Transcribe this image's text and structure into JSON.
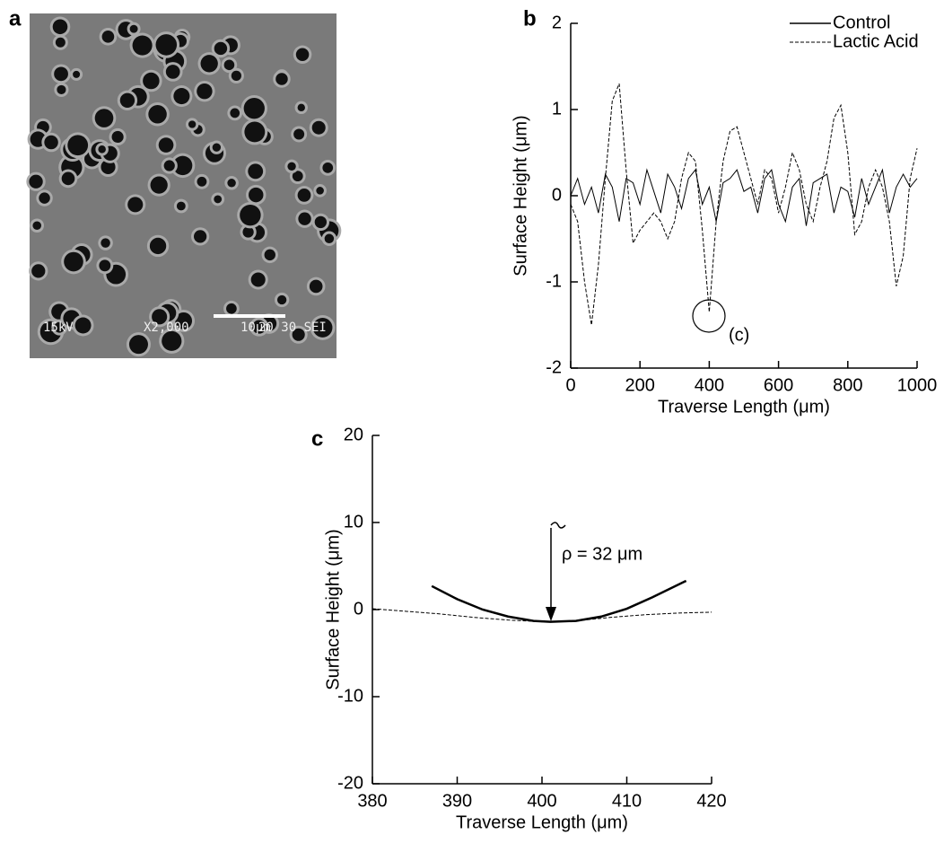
{
  "image_panel": {
    "panel_label": "a",
    "overlay": [
      "15kV",
      "X2,000",
      "10μm",
      "20 30 SEI"
    ]
  },
  "chart_data": [
    {
      "type": "line",
      "panel_label": "b",
      "x_label": "Traverse Length (μm)",
      "y_label": "Surface Height (μm)",
      "xlim": [
        0,
        1000
      ],
      "xticks": [
        0,
        200,
        400,
        600,
        800,
        1000
      ],
      "ylim": [
        -2,
        2
      ],
      "yticks": [
        -2,
        -1,
        0,
        1,
        2
      ],
      "legend": "upper right",
      "annotation": "(c)",
      "x": [
        0,
        20,
        40,
        60,
        80,
        100,
        120,
        140,
        160,
        180,
        200,
        220,
        240,
        260,
        280,
        300,
        320,
        340,
        360,
        380,
        400,
        420,
        440,
        460,
        480,
        500,
        520,
        540,
        560,
        580,
        600,
        620,
        640,
        660,
        680,
        700,
        720,
        740,
        760,
        780,
        800,
        820,
        840,
        860,
        880,
        900,
        920,
        940,
        960,
        980,
        1000
      ],
      "series": [
        {
          "name": "Control",
          "color": "#000000",
          "style": "solid",
          "values": [
            0,
            0.2,
            -0.1,
            0.1,
            -0.2,
            0.25,
            0.1,
            -0.3,
            0.2,
            0.15,
            -0.1,
            0.3,
            0.05,
            -0.2,
            0.25,
            0.1,
            -0.15,
            0.2,
            0.3,
            -0.1,
            0.1,
            -0.3,
            0.15,
            0.2,
            0.3,
            0.05,
            0.1,
            -0.2,
            0.2,
            0.3,
            -0.1,
            -0.3,
            0.1,
            0.2,
            -0.35,
            0.15,
            0.2,
            0.25,
            -0.2,
            0.1,
            0.05,
            -0.25,
            0.2,
            -0.1,
            0.1,
            0.3,
            -0.2,
            0.1,
            0.25,
            0.1,
            0.2
          ]
        },
        {
          "name": "Lactic Acid",
          "color": "#000000",
          "style": "dashed",
          "values": [
            -0.1,
            -0.3,
            -1.0,
            -1.5,
            -0.8,
            0.2,
            1.1,
            1.3,
            0.3,
            -0.55,
            -0.4,
            -0.3,
            -0.2,
            -0.3,
            -0.5,
            -0.3,
            0.2,
            0.5,
            0.4,
            -0.4,
            -1.35,
            -0.3,
            0.4,
            0.75,
            0.8,
            0.5,
            0.2,
            -0.1,
            0.3,
            0.2,
            -0.2,
            0.1,
            0.5,
            0.3,
            -0.1,
            -0.3,
            0.1,
            0.4,
            0.9,
            1.05,
            0.5,
            -0.45,
            -0.3,
            0.1,
            0.3,
            0.1,
            -0.3,
            -1.05,
            -0.7,
            0.2,
            0.55
          ]
        }
      ]
    },
    {
      "type": "line",
      "panel_label": "c",
      "x_label": "Traverse Length (μm)",
      "y_label": "Surface Height (μm)",
      "xlim": [
        380,
        420
      ],
      "xticks": [
        380,
        390,
        400,
        410,
        420
      ],
      "ylim": [
        -20,
        20
      ],
      "yticks": [
        -20,
        -10,
        0,
        10,
        20
      ],
      "annotation": "ρ = 32 μm",
      "series": [
        {
          "color": "#000000",
          "style": "dashed",
          "x": [
            380,
            384,
            388,
            392,
            396,
            400,
            402,
            404,
            408,
            412,
            416,
            420
          ],
          "values": [
            0.1,
            -0.2,
            -0.5,
            -0.9,
            -1.2,
            -1.4,
            -1.4,
            -1.3,
            -0.9,
            -0.6,
            -0.4,
            -0.3
          ]
        },
        {
          "color": "#000000",
          "style": "solid",
          "x": [
            387,
            390,
            393,
            396,
            399,
            401,
            404,
            407,
            410,
            413,
            417
          ],
          "values": [
            2.7,
            1.2,
            0.0,
            -0.8,
            -1.3,
            -1.4,
            -1.3,
            -0.8,
            0.1,
            1.4,
            3.3
          ]
        }
      ]
    }
  ]
}
